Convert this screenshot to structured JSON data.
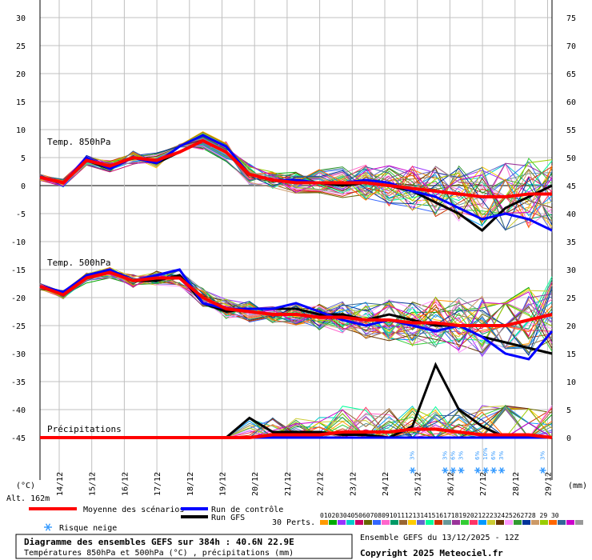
{
  "chart_data": {
    "type": "line",
    "x": [
      "14/12",
      "15/12",
      "16/12",
      "17/12",
      "18/12",
      "19/12",
      "20/12",
      "21/12",
      "22/12",
      "23/12",
      "24/12",
      "25/12",
      "26/12",
      "27/12",
      "28/12",
      "29/12"
    ],
    "left_ticks": [
      "30",
      "25",
      "20",
      "15",
      "10",
      "5",
      "0",
      "-5",
      "-10",
      "-15",
      "-20",
      "-25",
      "-30",
      "-35",
      "-40",
      "-45"
    ],
    "right_ticks": [
      "75",
      "70",
      "65",
      "60",
      "55",
      "50",
      "45",
      "40",
      "35",
      "30",
      "25",
      "20",
      "15",
      "10",
      "5",
      "0"
    ],
    "left_unit": "(°C)",
    "right_unit": "(mm)",
    "ylim_temp": [
      -45,
      30
    ],
    "ylim_precip": [
      0,
      75
    ],
    "panels": {
      "t850": "Temp. 850hPa",
      "t500": "Temp. 500hPa",
      "precip": "Précipitations"
    },
    "series": [
      {
        "name": "Moyenne des scénarios",
        "color": "#ff0000",
        "t850": [
          1.5,
          0.5,
          4.5,
          3.5,
          5,
          4.5,
          6,
          8,
          6,
          2,
          1,
          0.5,
          0.5,
          0.5,
          0.5,
          0,
          -0.5,
          -1,
          -1.5,
          -2,
          -2,
          -1.5,
          -1.5
        ],
        "t500": [
          -18,
          -19.5,
          -16.5,
          -15.5,
          -17,
          -16.5,
          -16.5,
          -20,
          -22,
          -22.5,
          -23,
          -23,
          -23.5,
          -23.5,
          -24,
          -24,
          -24.5,
          -24.5,
          -25,
          -25,
          -25,
          -24,
          -23
        ],
        "precip": [
          0,
          0,
          0,
          0,
          0,
          0,
          0,
          0,
          0,
          0,
          0.5,
          0.5,
          0.5,
          1,
          1,
          1,
          1.5,
          1.5,
          1,
          0.5,
          0.5,
          0.5,
          0
        ]
      },
      {
        "name": "Run de contrôle",
        "color": "#0000ff",
        "t850": [
          1.5,
          0.5,
          5,
          3,
          5,
          4,
          7,
          9,
          7,
          2,
          1,
          1,
          0.5,
          0.5,
          1,
          0.5,
          -1,
          -2,
          -4,
          -6,
          -5,
          -6,
          -8
        ],
        "t500": [
          -18,
          -19,
          -16,
          -15,
          -17,
          -16,
          -15,
          -21,
          -22,
          -22,
          -22,
          -21,
          -22.5,
          -24,
          -25,
          -24,
          -25,
          -26,
          -25,
          -27,
          -30,
          -31,
          -26
        ],
        "precip": [
          0,
          0,
          0,
          0,
          0,
          0,
          0,
          0,
          0,
          0,
          0,
          0,
          0,
          0,
          0,
          0,
          0,
          0,
          0,
          0,
          0,
          0,
          0
        ]
      },
      {
        "name": "Run GFS",
        "color": "#000000",
        "t850": [
          1.5,
          0.5,
          4.5,
          3,
          5,
          4,
          6,
          8,
          6,
          2,
          1,
          0.5,
          0.5,
          0,
          0.5,
          0,
          -1,
          -3,
          -5,
          -8,
          -4,
          -2,
          0
        ],
        "t500": [
          -18,
          -19,
          -16.5,
          -15.5,
          -17,
          -17,
          -16,
          -21,
          -22.5,
          -22,
          -22,
          -22,
          -23,
          -23,
          -24,
          -23,
          -24,
          -25,
          -25,
          -27,
          -28,
          -29,
          -30
        ],
        "precip": [
          0,
          0,
          0,
          0,
          0,
          0,
          0,
          0,
          0,
          3.5,
          1,
          1,
          1,
          0.5,
          0.5,
          0,
          2,
          13,
          5,
          2,
          0,
          0,
          0
        ]
      }
    ],
    "snow_risk_labels": [
      "3%",
      "3%",
      "6%",
      "3%",
      "6%",
      "10%",
      "6%",
      "3%",
      "3%"
    ],
    "snow_risk_days": [
      "25/12",
      "26/12",
      "26/12",
      "26/12",
      "27/12",
      "27/12",
      "27/12",
      "27/12",
      "29/12"
    ]
  },
  "header": {
    "alt": "Alt. 162m",
    "legend_mean": "Moyenne des scénarios",
    "legend_control": "Run de contrôle",
    "legend_gfs": "Run GFS",
    "legend_snow": "Risque neige",
    "perts_label": "30 Perts.",
    "perts_numbers": "01020304050607080910111213141516171819202122232425262728 29 30"
  },
  "footer": {
    "title": "Diagramme des ensembles GEFS sur 384h : 40.6N 22.9E",
    "subtitle": "Températures 850hPa et 500hPa (°C) , précipitations (mm)",
    "run": "Ensemble GEFS du 13/12/2025 - 12Z",
    "copyright": "Copyright 2025 Meteociel.fr"
  },
  "colors": {
    "mean": "#ff0000",
    "control": "#0000ff",
    "gfs": "#000000",
    "grid": "#c0c0c0",
    "snow": "#3399ff"
  }
}
